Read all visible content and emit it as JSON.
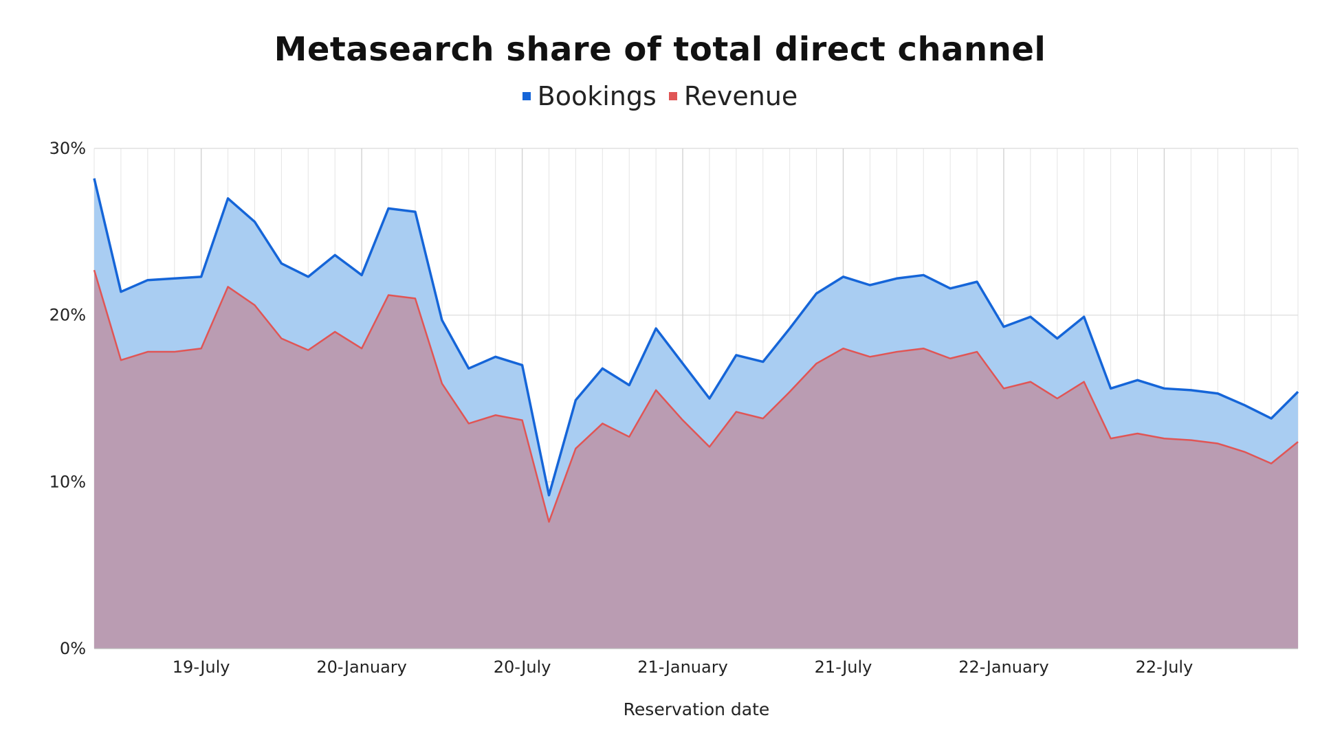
{
  "chart_data": {
    "type": "area",
    "title": "Metasearch share of total direct channel",
    "xlabel": "Reservation date",
    "ylabel": "",
    "ylim": [
      0,
      0.3
    ],
    "yticks": [
      {
        "value": 0,
        "label": "0%"
      },
      {
        "value": 0.1,
        "label": "10%"
      },
      {
        "value": 0.2,
        "label": "20%"
      },
      {
        "value": 0.3,
        "label": "30%"
      }
    ],
    "x_tick_labels": [
      {
        "index": 4,
        "label": "19-July"
      },
      {
        "index": 10,
        "label": "20-January"
      },
      {
        "index": 16,
        "label": "20-July"
      },
      {
        "index": 22,
        "label": "21-January"
      },
      {
        "index": 28,
        "label": "21-July"
      },
      {
        "index": 34,
        "label": "22-January"
      },
      {
        "index": 40,
        "label": "22-July"
      }
    ],
    "n_points": 46,
    "legend_position": "top",
    "grid": true,
    "series": [
      {
        "name": "Bookings",
        "color": "#1565d8",
        "fill": "#a9cdf2",
        "values": [
          0.282,
          0.214,
          0.221,
          0.222,
          0.223,
          0.27,
          0.256,
          0.231,
          0.223,
          0.236,
          0.224,
          0.264,
          0.262,
          0.197,
          0.168,
          0.175,
          0.17,
          0.092,
          0.149,
          0.168,
          0.158,
          0.192,
          0.171,
          0.15,
          0.176,
          0.172,
          0.192,
          0.213,
          0.223,
          0.218,
          0.222,
          0.224,
          0.216,
          0.22,
          0.193,
          0.199,
          0.186,
          0.199,
          0.156,
          0.161,
          0.156,
          0.155,
          0.153,
          0.146,
          0.138,
          0.154
        ]
      },
      {
        "name": "Revenue",
        "color": "#e05555",
        "fill": "#bb9aaf",
        "values": [
          0.227,
          0.173,
          0.178,
          0.178,
          0.18,
          0.217,
          0.206,
          0.186,
          0.179,
          0.19,
          0.18,
          0.212,
          0.21,
          0.159,
          0.135,
          0.14,
          0.137,
          0.076,
          0.12,
          0.135,
          0.127,
          0.155,
          0.137,
          0.121,
          0.142,
          0.138,
          0.154,
          0.171,
          0.18,
          0.175,
          0.178,
          0.18,
          0.174,
          0.178,
          0.156,
          0.16,
          0.15,
          0.16,
          0.126,
          0.129,
          0.126,
          0.125,
          0.123,
          0.118,
          0.111,
          0.124
        ]
      }
    ]
  }
}
